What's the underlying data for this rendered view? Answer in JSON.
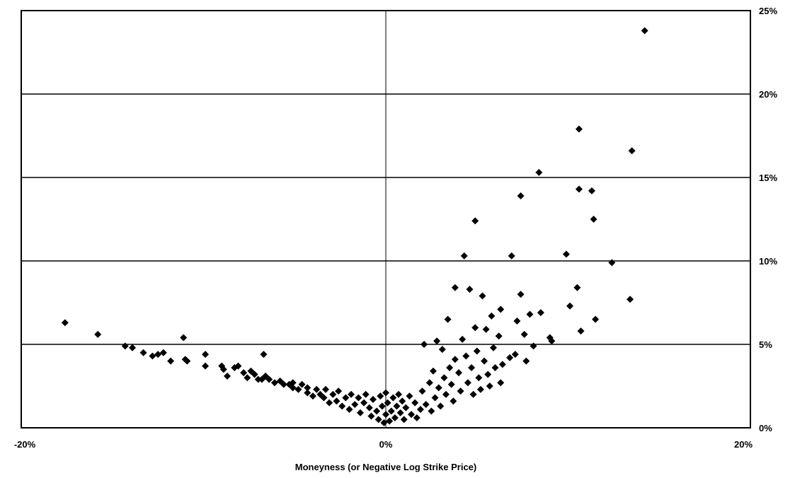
{
  "chart_data": {
    "type": "scatter",
    "title": "",
    "xlabel": "Moneyness (or Negative Log Strike Price)",
    "ylabel": "",
    "xlim": [
      -20,
      20
    ],
    "ylim": [
      0,
      25
    ],
    "x_ticks": [
      -20,
      0,
      20
    ],
    "x_tick_labels": [
      "-20%",
      "0%",
      "20%"
    ],
    "y_ticks": [
      0,
      5,
      10,
      15,
      20,
      25
    ],
    "y_tick_labels": [
      "0%",
      "5%",
      "10%",
      "15%",
      "20%",
      "25%"
    ],
    "y_axis_side": "right",
    "grid": "horizontal at y ticks, vertical at x = 0",
    "marker": "diamond",
    "marker_color": "#000000",
    "series": [
      {
        "points": [
          [
            -17.6,
            6.3
          ],
          [
            -15.8,
            5.6
          ],
          [
            -14.3,
            4.9
          ],
          [
            -13.9,
            4.8
          ],
          [
            -13.3,
            4.5
          ],
          [
            -12.8,
            4.3
          ],
          [
            -12.5,
            4.4
          ],
          [
            -12.2,
            4.5
          ],
          [
            -11.8,
            4.0
          ],
          [
            -11.1,
            5.4
          ],
          [
            -11.0,
            4.1
          ],
          [
            -10.9,
            4.0
          ],
          [
            -9.9,
            4.4
          ],
          [
            -9.9,
            3.7
          ],
          [
            -9.0,
            3.7
          ],
          [
            -8.9,
            3.5
          ],
          [
            -8.7,
            3.1
          ],
          [
            -8.3,
            3.6
          ],
          [
            -8.1,
            3.7
          ],
          [
            -7.8,
            3.3
          ],
          [
            -7.6,
            3.0
          ],
          [
            -7.4,
            3.4
          ],
          [
            -7.2,
            3.2
          ],
          [
            -7.0,
            2.9
          ],
          [
            -6.8,
            2.9
          ],
          [
            -6.7,
            4.4
          ],
          [
            -6.6,
            3.1
          ],
          [
            -6.4,
            2.9
          ],
          [
            -6.1,
            2.7
          ],
          [
            -5.8,
            2.8
          ],
          [
            -5.6,
            2.6
          ],
          [
            -5.3,
            2.6
          ],
          [
            -5.1,
            2.4
          ],
          [
            -5.1,
            2.7
          ],
          [
            -4.8,
            2.3
          ],
          [
            -4.6,
            2.6
          ],
          [
            -4.3,
            2.1
          ],
          [
            -4.3,
            2.4
          ],
          [
            -4.0,
            1.9
          ],
          [
            -3.8,
            2.3
          ],
          [
            -3.6,
            2.0
          ],
          [
            -3.4,
            1.8
          ],
          [
            -3.3,
            2.3
          ],
          [
            -3.1,
            1.5
          ],
          [
            -2.9,
            2.0
          ],
          [
            -2.7,
            1.6
          ],
          [
            -2.6,
            2.2
          ],
          [
            -2.4,
            1.3
          ],
          [
            -2.2,
            1.8
          ],
          [
            -2.0,
            1.1
          ],
          [
            -1.9,
            2.0
          ],
          [
            -1.7,
            1.4
          ],
          [
            -1.5,
            1.8
          ],
          [
            -1.4,
            0.9
          ],
          [
            -1.2,
            1.5
          ],
          [
            -1.1,
            2.0
          ],
          [
            -0.9,
            1.2
          ],
          [
            -0.8,
            0.7
          ],
          [
            -0.7,
            1.7
          ],
          [
            -0.5,
            1.0
          ],
          [
            -0.4,
            0.5
          ],
          [
            -0.3,
            1.9
          ],
          [
            -0.2,
            1.3
          ],
          [
            -0.1,
            0.3
          ],
          [
            0.0,
            0.8
          ],
          [
            0.0,
            2.1
          ],
          [
            0.1,
            1.5
          ],
          [
            0.2,
            0.4
          ],
          [
            0.3,
            1.0
          ],
          [
            0.4,
            1.8
          ],
          [
            0.5,
            0.6
          ],
          [
            0.6,
            1.3
          ],
          [
            0.7,
            2.0
          ],
          [
            0.8,
            0.9
          ],
          [
            0.9,
            1.6
          ],
          [
            1.0,
            0.5
          ],
          [
            1.1,
            1.2
          ],
          [
            1.3,
            1.9
          ],
          [
            1.4,
            0.8
          ],
          [
            1.6,
            1.5
          ],
          [
            1.7,
            0.6
          ],
          [
            1.9,
            1.1
          ],
          [
            2.0,
            2.2
          ],
          [
            2.1,
            5.0
          ],
          [
            2.2,
            1.4
          ],
          [
            2.4,
            2.7
          ],
          [
            2.5,
            1.0
          ],
          [
            2.6,
            3.4
          ],
          [
            2.7,
            1.8
          ],
          [
            2.8,
            5.2
          ],
          [
            2.9,
            2.4
          ],
          [
            3.0,
            1.3
          ],
          [
            3.1,
            4.7
          ],
          [
            3.2,
            3.0
          ],
          [
            3.3,
            2.0
          ],
          [
            3.4,
            6.5
          ],
          [
            3.5,
            3.6
          ],
          [
            3.6,
            2.6
          ],
          [
            3.7,
            1.6
          ],
          [
            3.8,
            4.1
          ],
          [
            3.8,
            8.4
          ],
          [
            4.0,
            3.3
          ],
          [
            4.1,
            2.2
          ],
          [
            4.2,
            5.3
          ],
          [
            4.3,
            10.3
          ],
          [
            4.4,
            4.3
          ],
          [
            4.5,
            2.7
          ],
          [
            4.6,
            8.3
          ],
          [
            4.7,
            3.6
          ],
          [
            4.8,
            2.0
          ],
          [
            4.9,
            12.4
          ],
          [
            4.9,
            6.0
          ],
          [
            5.0,
            4.6
          ],
          [
            5.1,
            3.0
          ],
          [
            5.2,
            2.3
          ],
          [
            5.3,
            7.9
          ],
          [
            5.4,
            4.0
          ],
          [
            5.5,
            5.9
          ],
          [
            5.6,
            3.2
          ],
          [
            5.7,
            2.5
          ],
          [
            5.8,
            6.7
          ],
          [
            5.9,
            4.8
          ],
          [
            6.0,
            3.6
          ],
          [
            6.2,
            5.5
          ],
          [
            6.3,
            7.1
          ],
          [
            6.3,
            2.7
          ],
          [
            6.4,
            3.8
          ],
          [
            6.8,
            4.2
          ],
          [
            6.9,
            10.3
          ],
          [
            7.1,
            4.4
          ],
          [
            7.2,
            6.4
          ],
          [
            7.4,
            8.0
          ],
          [
            7.4,
            13.9
          ],
          [
            7.6,
            5.6
          ],
          [
            7.7,
            4.0
          ],
          [
            7.9,
            6.8
          ],
          [
            8.1,
            4.9
          ],
          [
            8.4,
            15.3
          ],
          [
            8.5,
            6.9
          ],
          [
            9.0,
            5.4
          ],
          [
            9.1,
            5.2
          ],
          [
            9.9,
            10.4
          ],
          [
            10.1,
            7.3
          ],
          [
            10.5,
            8.4
          ],
          [
            10.6,
            17.9
          ],
          [
            10.6,
            14.3
          ],
          [
            10.7,
            5.8
          ],
          [
            11.3,
            14.2
          ],
          [
            11.4,
            12.5
          ],
          [
            11.5,
            6.5
          ],
          [
            12.4,
            9.9
          ],
          [
            13.4,
            7.7
          ],
          [
            13.5,
            16.6
          ],
          [
            14.2,
            23.8
          ]
        ]
      }
    ]
  }
}
